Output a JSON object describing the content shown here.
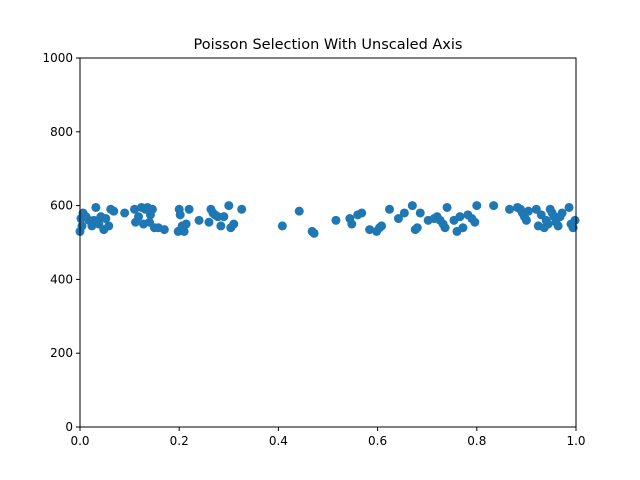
{
  "chart_data": {
    "type": "scatter",
    "title": "Poisson Selection With Unscaled Axis",
    "xlabel": "",
    "ylabel": "",
    "xlim": [
      0.0,
      1.0
    ],
    "ylim": [
      0,
      1000
    ],
    "x_ticks": [
      "0.0",
      "0.2",
      "0.4",
      "0.6",
      "0.8",
      "1.0"
    ],
    "y_ticks": [
      "0",
      "200",
      "400",
      "600",
      "800",
      "1000"
    ],
    "grid": false,
    "legend": "none",
    "marker_color": "#1f77b4",
    "series": [
      {
        "x": [
          0.0,
          0.002,
          0.004,
          0.006,
          0.008,
          0.012,
          0.018,
          0.024,
          0.028,
          0.032,
          0.034,
          0.038,
          0.042,
          0.048,
          0.052,
          0.058,
          0.062,
          0.068,
          0.09,
          0.11,
          0.112,
          0.118,
          0.124,
          0.128,
          0.132,
          0.136,
          0.14,
          0.142,
          0.146,
          0.15,
          0.158,
          0.17,
          0.198,
          0.2,
          0.202,
          0.206,
          0.21,
          0.214,
          0.22,
          0.24,
          0.26,
          0.264,
          0.268,
          0.272,
          0.278,
          0.284,
          0.29,
          0.3,
          0.304,
          0.31,
          0.326,
          0.408,
          0.442,
          0.468,
          0.472,
          0.516,
          0.544,
          0.548,
          0.56,
          0.568,
          0.584,
          0.598,
          0.604,
          0.608,
          0.624,
          0.642,
          0.654,
          0.67,
          0.676,
          0.68,
          0.686,
          0.702,
          0.714,
          0.72,
          0.726,
          0.732,
          0.736,
          0.74,
          0.754,
          0.76,
          0.766,
          0.772,
          0.782,
          0.79,
          0.796,
          0.8,
          0.834,
          0.866,
          0.882,
          0.888,
          0.892,
          0.896,
          0.9,
          0.904,
          0.92,
          0.924,
          0.93,
          0.936,
          0.94,
          0.944,
          0.948,
          0.952,
          0.956,
          0.96,
          0.964,
          0.968,
          0.972,
          0.986,
          0.99,
          0.994,
          0.998
        ],
        "y": [
          530,
          565,
          545,
          580,
          575,
          570,
          560,
          545,
          560,
          595,
          555,
          550,
          570,
          535,
          565,
          545,
          590,
          585,
          580,
          590,
          555,
          570,
          595,
          550,
          590,
          595,
          555,
          575,
          590,
          540,
          540,
          535,
          530,
          590,
          575,
          545,
          530,
          550,
          590,
          560,
          555,
          590,
          580,
          575,
          570,
          545,
          570,
          600,
          540,
          550,
          590,
          545,
          585,
          530,
          525,
          560,
          565,
          550,
          575,
          580,
          535,
          530,
          540,
          545,
          590,
          565,
          580,
          600,
          535,
          540,
          580,
          560,
          565,
          570,
          560,
          550,
          540,
          595,
          560,
          530,
          570,
          540,
          575,
          565,
          555,
          600,
          600,
          590,
          595,
          590,
          580,
          570,
          560,
          585,
          590,
          545,
          575,
          540,
          560,
          550,
          590,
          580,
          570,
          555,
          545,
          570,
          580,
          595,
          550,
          540,
          560
        ]
      }
    ]
  }
}
